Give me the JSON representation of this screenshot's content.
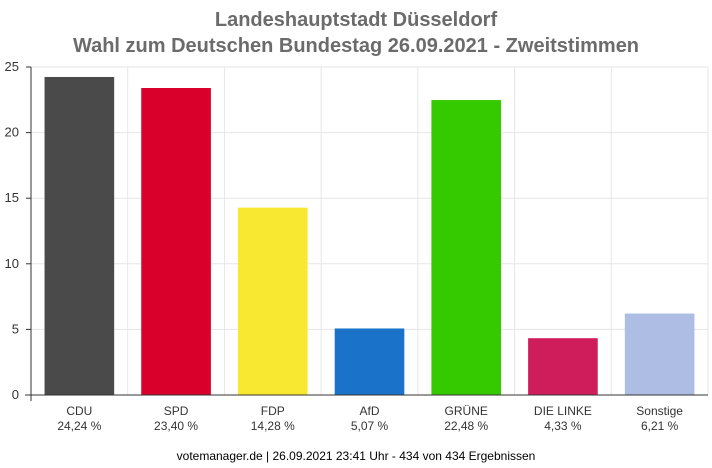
{
  "chart_data": {
    "type": "bar",
    "title": [
      "Landeshauptstadt Düsseldorf",
      "Wahl zum Deutschen Bundestag 26.09.2021  - Zweitstimmen"
    ],
    "xlabel": "",
    "ylabel": "",
    "ylim": [
      0,
      25
    ],
    "yticks": [
      "0",
      "5",
      "10",
      "15",
      "20",
      "25"
    ],
    "grid": true,
    "legend": "none",
    "categories": [
      "CDU",
      "SPD",
      "FDP",
      "AfD",
      "GRÜNE",
      "DIE LINKE",
      "Sonstige"
    ],
    "value_labels": [
      "24,24 %",
      "23,40 %",
      "14,28 %",
      "5,07 %",
      "22,48 %",
      "4,33 %",
      "6,21 %"
    ],
    "values": [
      24.24,
      23.4,
      14.28,
      5.07,
      22.48,
      4.33,
      6.21
    ],
    "colors": [
      "#4a4a4a",
      "#d9002c",
      "#f9e831",
      "#1a72c9",
      "#35c900",
      "#cf1d5b",
      "#aebde3"
    ],
    "footer": "votemanager.de | 26.09.2021 23:41 Uhr - 434 von 434 Ergebnissen"
  }
}
